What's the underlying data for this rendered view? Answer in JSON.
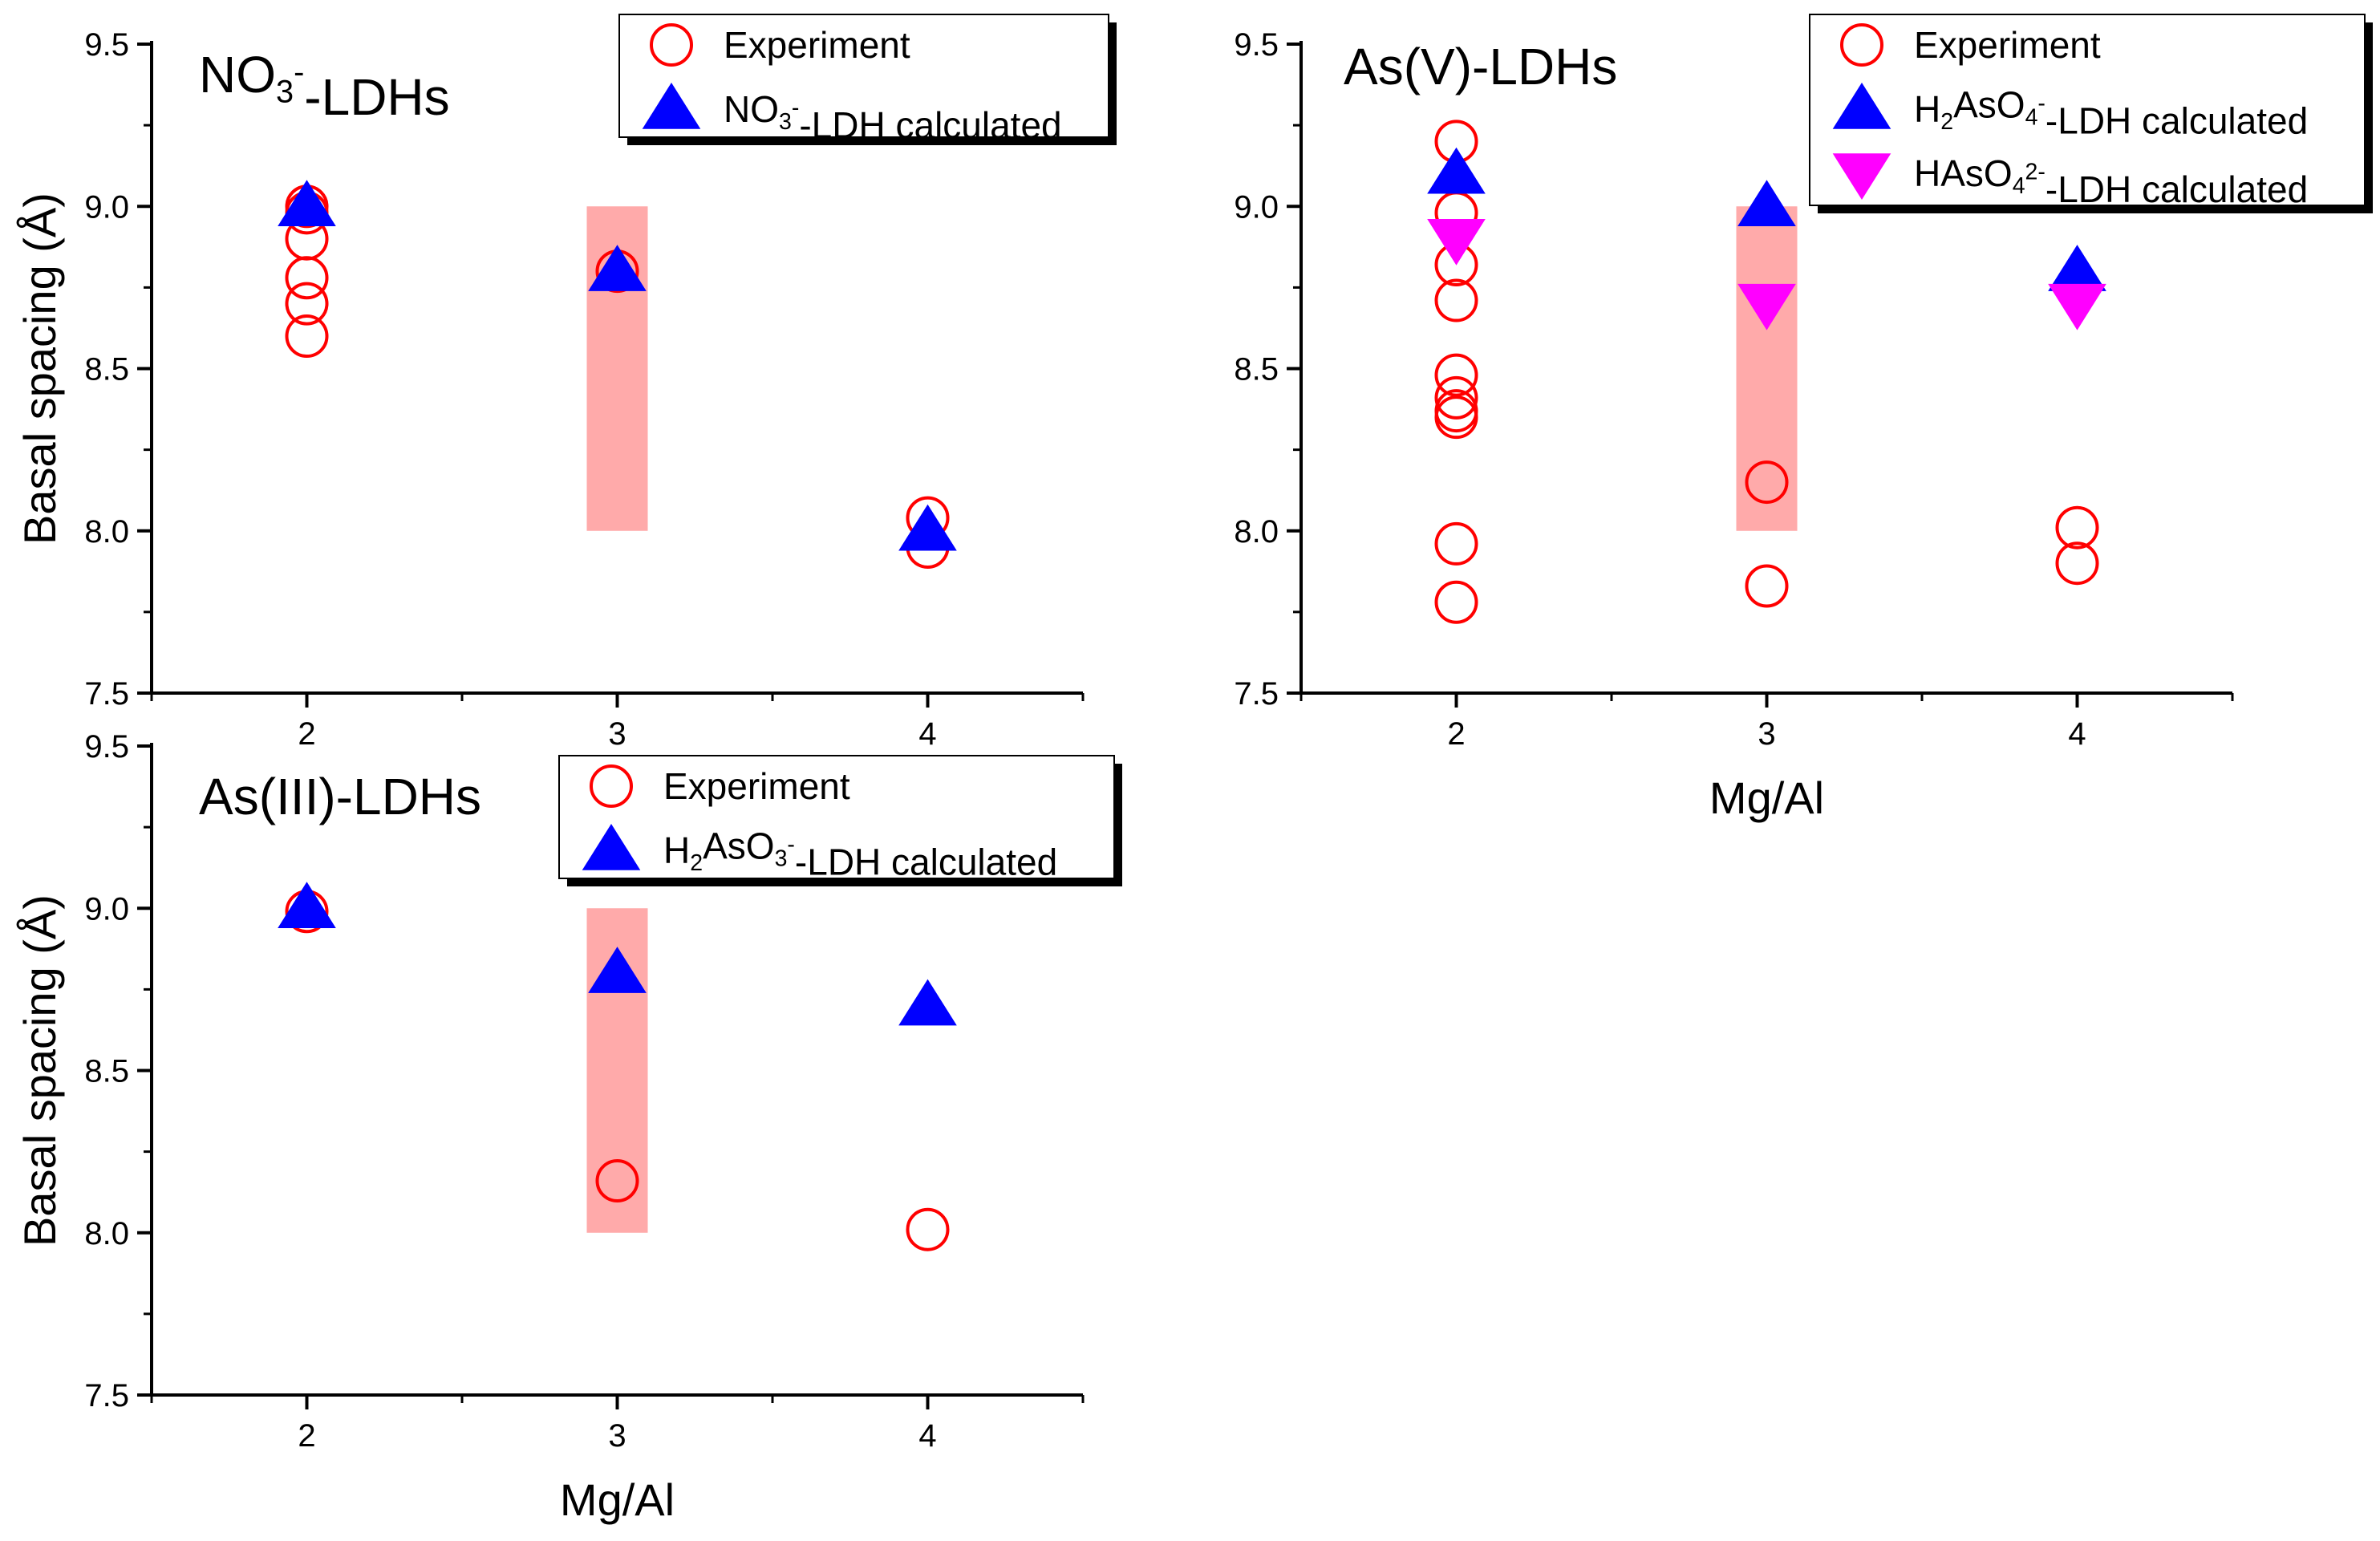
{
  "colors": {
    "experiment": "#ff0000",
    "calc_primary": "#0000ff",
    "calc_secondary": "#ff00ff",
    "range_band": "#ffaaaa",
    "axis": "#000000"
  },
  "chart_data": [
    {
      "type": "scatter",
      "panel": "top-left",
      "title": {
        "base": "NO",
        "sub": "3",
        "sup": "-",
        "rest": "-LDHs"
      },
      "xlabel": "",
      "ylabel": "Basal spacing (Å)",
      "xlim": [
        1.5,
        4.5
      ],
      "ylim": [
        7.5,
        9.5
      ],
      "xticks": [
        "2",
        "3",
        "4"
      ],
      "yticks": [
        "7.5",
        "8.0",
        "8.5",
        "9.0",
        "9.5"
      ],
      "range_band": {
        "x": 3,
        "y_min": 8.0,
        "y_max": 9.0
      },
      "legend": [
        {
          "marker": "circle",
          "parts": [
            {
              "t": "Experiment"
            }
          ]
        },
        {
          "marker": "triangle-up",
          "parts": [
            {
              "t": "NO"
            },
            {
              "t": "3",
              "sub": true
            },
            {
              "t": "-",
              "sup": true
            },
            {
              "t": "-LDH calculated"
            }
          ]
        }
      ],
      "series": [
        {
          "name": "Experiment",
          "marker": "circle",
          "x": [
            2,
            2,
            2,
            2,
            2,
            2,
            3,
            4,
            4
          ],
          "y": [
            9.0,
            8.98,
            8.9,
            8.78,
            8.7,
            8.6,
            8.8,
            8.04,
            7.95
          ]
        },
        {
          "name": "NO3--LDH calculated",
          "marker": "triangle-up",
          "x": [
            2,
            3,
            4
          ],
          "y": [
            9.0,
            8.8,
            8.0
          ]
        }
      ]
    },
    {
      "type": "scatter",
      "panel": "top-right",
      "title": {
        "base": "As(V)-LDHs"
      },
      "xlabel": "Mg/Al",
      "ylabel": "",
      "xlim": [
        1.5,
        4.5
      ],
      "ylim": [
        7.5,
        9.5
      ],
      "xticks": [
        "2",
        "3",
        "4"
      ],
      "yticks": [
        "7.5",
        "8.0",
        "8.5",
        "9.0",
        "9.5"
      ],
      "range_band": {
        "x": 3,
        "y_min": 8.0,
        "y_max": 9.0
      },
      "legend": [
        {
          "marker": "circle",
          "parts": [
            {
              "t": "Experiment"
            }
          ]
        },
        {
          "marker": "triangle-up",
          "parts": [
            {
              "t": "H"
            },
            {
              "t": "2",
              "sub": true
            },
            {
              "t": "AsO"
            },
            {
              "t": "4",
              "sub": true
            },
            {
              "t": "-",
              "sup": true
            },
            {
              "t": "-LDH calculated"
            }
          ]
        },
        {
          "marker": "triangle-down",
          "parts": [
            {
              "t": "HAsO"
            },
            {
              "t": "4",
              "sub": true
            },
            {
              "t": "2-",
              "sup": true
            },
            {
              "t": "-LDH calculated"
            }
          ]
        }
      ],
      "series": [
        {
          "name": "Experiment",
          "marker": "circle",
          "x": [
            2,
            2,
            2,
            2,
            2,
            2,
            2,
            2,
            2,
            2,
            3,
            3,
            4,
            4
          ],
          "y": [
            9.2,
            8.98,
            8.82,
            8.71,
            8.48,
            8.41,
            8.37,
            7.96,
            7.78,
            8.35,
            8.15,
            7.83,
            8.01,
            7.9
          ]
        },
        {
          "name": "H2AsO4--LDH calculated",
          "marker": "triangle-up",
          "x": [
            2,
            3,
            4
          ],
          "y": [
            9.1,
            9.0,
            8.8
          ]
        },
        {
          "name": "HAsO42--LDH calculated",
          "marker": "triangle-down",
          "x": [
            2,
            3,
            4
          ],
          "y": [
            8.9,
            8.7,
            8.7
          ]
        }
      ]
    },
    {
      "type": "scatter",
      "panel": "bottom-left",
      "title": {
        "base": "As(III)-LDHs"
      },
      "xlabel": "Mg/Al",
      "ylabel": "Basal spacing (Å)",
      "xlim": [
        1.5,
        4.5
      ],
      "ylim": [
        7.5,
        9.5
      ],
      "xticks": [
        "2",
        "3",
        "4"
      ],
      "yticks": [
        "7.5",
        "8.0",
        "8.5",
        "9.0",
        "9.5"
      ],
      "range_band": {
        "x": 3,
        "y_min": 8.0,
        "y_max": 9.0
      },
      "legend": [
        {
          "marker": "circle",
          "parts": [
            {
              "t": "Experiment"
            }
          ]
        },
        {
          "marker": "triangle-up",
          "parts": [
            {
              "t": "H"
            },
            {
              "t": "2",
              "sub": true
            },
            {
              "t": "AsO"
            },
            {
              "t": "3",
              "sub": true
            },
            {
              "t": "-",
              "sup": true
            },
            {
              "t": "-LDH calculated"
            }
          ]
        }
      ],
      "series": [
        {
          "name": "Experiment",
          "marker": "circle",
          "x": [
            2,
            3,
            4
          ],
          "y": [
            8.99,
            8.16,
            8.01
          ]
        },
        {
          "name": "H2AsO3--LDH calculated",
          "marker": "triangle-up",
          "x": [
            2,
            3,
            4
          ],
          "y": [
            9.0,
            8.8,
            8.7
          ]
        }
      ]
    }
  ]
}
